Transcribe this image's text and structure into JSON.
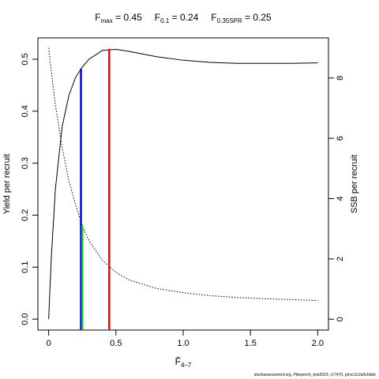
{
  "chart_data": {
    "type": "line",
    "title": [
      {
        "main": "F",
        "sub": "max",
        "rest": " = 0.45"
      },
      {
        "main": "F",
        "sub": "0.1",
        "rest": " = 0.24"
      },
      {
        "main": "F",
        "sub": "0.35SPR",
        "rest": " = 0.25"
      }
    ],
    "xlabel": {
      "main": "F̄",
      "sub": "4–7"
    },
    "ylabel": "Yield per recruit",
    "y2label": "SSB per recruit",
    "footer": "stockassessment.org, Pikeperch_test2023, r17470, git:ec2c2a0c6dde",
    "x": [
      0,
      0.02,
      0.05,
      0.1,
      0.15,
      0.2,
      0.25,
      0.3,
      0.4,
      0.5,
      0.6,
      0.8,
      1.0,
      1.2,
      1.4,
      1.6,
      1.8,
      2.0
    ],
    "series": [
      {
        "name": "Yield per recruit",
        "color": "#000000",
        "dash": "none",
        "axis": "y",
        "values": [
          0,
          0.12,
          0.25,
          0.37,
          0.43,
          0.465,
          0.485,
          0.5,
          0.517,
          0.519,
          0.515,
          0.505,
          0.498,
          0.494,
          0.492,
          0.492,
          0.492,
          0.493
        ]
      },
      {
        "name": "SSB per recruit",
        "color": "#000000",
        "dash": "1.5 2",
        "axis": "y2",
        "values": [
          9.0,
          8.2,
          7.1,
          5.7,
          4.6,
          3.8,
          3.1,
          2.6,
          1.95,
          1.55,
          1.3,
          1.02,
          0.88,
          0.78,
          0.72,
          0.68,
          0.65,
          0.62
        ]
      }
    ],
    "vlines": [
      {
        "x": 0.45,
        "y": 0.52,
        "axis": "y",
        "color": "#ff0000"
      },
      {
        "x": 0.24,
        "y": 0.482,
        "axis": "y",
        "color": "#0000ff"
      },
      {
        "x": 0.25,
        "y": 3.1,
        "axis": "y2",
        "color": "#00cc00"
      }
    ],
    "xlim": [
      -0.08,
      2.08
    ],
    "xticks": [
      0,
      0.5,
      {
        "value": 1,
        "label": "1.0"
      },
      1.5,
      {
        "value": 2,
        "label": "2.0"
      }
    ],
    "ylim": [
      -0.021,
      0.541
    ],
    "yticks": [
      {
        "value": 0,
        "label": "0.0"
      },
      0.1,
      0.2,
      0.3,
      0.4,
      0.5
    ],
    "y2lim": [
      -0.36,
      9.33
    ],
    "y2ticks": [
      0,
      2,
      4,
      6,
      8
    ],
    "grid": false
  }
}
